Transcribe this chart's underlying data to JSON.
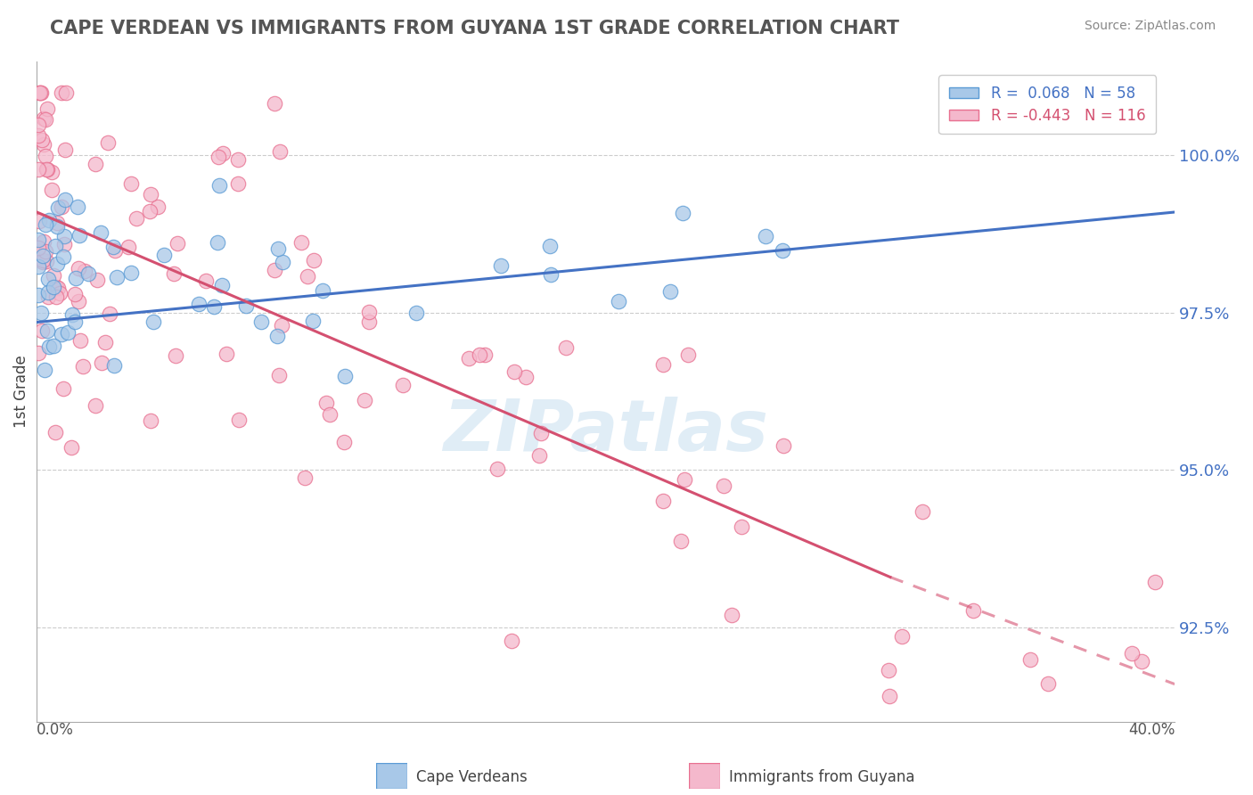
{
  "title": "CAPE VERDEAN VS IMMIGRANTS FROM GUYANA 1ST GRADE CORRELATION CHART",
  "source": "Source: ZipAtlas.com",
  "ylabel": "1st Grade",
  "xmin": 0.0,
  "xmax": 40.0,
  "ymin": 91.0,
  "ymax": 101.5,
  "yticks_right": [
    92.5,
    95.0,
    97.5,
    100.0
  ],
  "ytick_labels_right": [
    "92.5%",
    "95.0%",
    "97.5%",
    "100.0%"
  ],
  "gridline_y": [
    92.5,
    95.0,
    97.5,
    100.0
  ],
  "blue_R": 0.068,
  "blue_N": 58,
  "pink_R": -0.443,
  "pink_N": 116,
  "blue_color": "#a8c8e8",
  "blue_edge_color": "#5b9bd5",
  "blue_line_color": "#4472c4",
  "pink_color": "#f4b8cc",
  "pink_edge_color": "#e87090",
  "pink_line_color": "#d45070",
  "legend_label_blue": "R =  0.068   N = 58",
  "legend_label_pink": "R = -0.443   N = 116",
  "right_tick_color": "#4472c4",
  "title_color": "#555555",
  "source_color": "#888888",
  "watermark": "ZIPatlas",
  "watermark_color": "#c8dff0",
  "background_color": "#ffffff",
  "blue_line_x0": 0.0,
  "blue_line_y0": 97.35,
  "blue_line_x1": 40.0,
  "blue_line_y1": 99.1,
  "pink_line_x0": 0.0,
  "pink_line_y0": 99.1,
  "pink_solid_x1": 30.0,
  "pink_solid_y1": 93.3,
  "pink_dash_x1": 40.0,
  "pink_dash_y1": 91.6
}
